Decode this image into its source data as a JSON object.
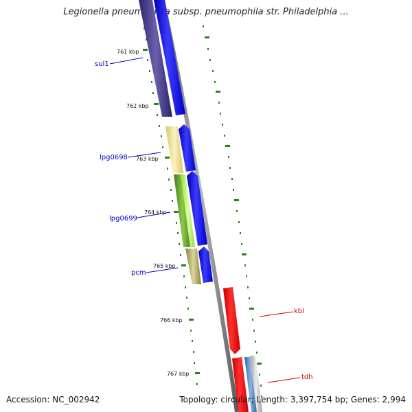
{
  "title": "Legionella pneumophila subsp. pneumophila str. Philadelphia ...",
  "footer": {
    "accession": "Accession: NC_002942",
    "summary": "Topology: circular; Length: 3,397,754 bp; Genes: 2,994"
  },
  "scale_ticks": [
    {
      "label": "761 kbp"
    },
    {
      "label": "762 kbp"
    },
    {
      "label": "763 kbp"
    },
    {
      "label": "764 kbp"
    },
    {
      "label": "765 kbp"
    },
    {
      "label": "766 kbp"
    },
    {
      "label": "767 kbp"
    }
  ],
  "gene_labels": [
    {
      "name": "sul1",
      "color": "#0000cc"
    },
    {
      "name": "lpg0698",
      "color": "#0000cc"
    },
    {
      "name": "lpg0699",
      "color": "#0000cc"
    },
    {
      "name": "pcm",
      "color": "#0000cc"
    },
    {
      "name": "kbl",
      "color": "#cc0000"
    },
    {
      "name": "tdh",
      "color": "#cc0000"
    }
  ],
  "colors": {
    "backbone": "#8a8a8a",
    "tick": "#2e7d1e",
    "cds_forward": "#0000ff",
    "cds_reverse": "#ff0000",
    "cog_purple": "#4a3f8c",
    "cog_yellow": "#f2e39a",
    "cog_green": "#6aa832",
    "cog_khaki": "#b3a85c",
    "cog_blue": "#4a7fb5",
    "cog_grey": "#bfbfbf"
  }
}
